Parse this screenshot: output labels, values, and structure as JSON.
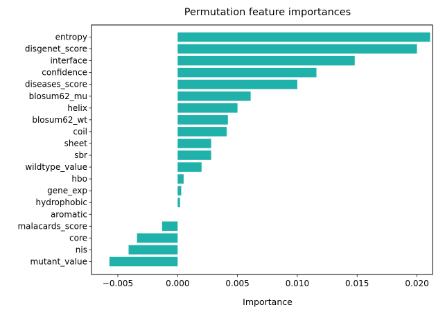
{
  "chart_data": {
    "type": "bar",
    "orientation": "horizontal",
    "title": "Permutation feature importances",
    "xlabel": "Importance",
    "ylabel": "",
    "bar_color": "#20b2aa",
    "categories": [
      "entropy",
      "disgenet_score",
      "interface",
      "confidence",
      "diseases_score",
      "blosum62_mu",
      "helix",
      "blosum62_wt",
      "coil",
      "sheet",
      "sbr",
      "wildtype_value",
      "hbo",
      "gene_exp",
      "hydrophobic",
      "aromatic",
      "malacards_score",
      "core",
      "nis",
      "mutant_value"
    ],
    "values": [
      0.0211,
      0.02,
      0.0148,
      0.0116,
      0.01,
      0.0061,
      0.005,
      0.0042,
      0.0041,
      0.0028,
      0.0028,
      0.002,
      0.0005,
      0.0003,
      0.0002,
      0.0,
      -0.0013,
      -0.0034,
      -0.0041,
      -0.0057
    ],
    "xlim": [
      -0.0072,
      0.0213
    ],
    "xticks": [
      -0.005,
      0.0,
      0.005,
      0.01,
      0.015,
      0.02
    ],
    "xtick_labels": [
      "−0.005",
      "0.000",
      "0.005",
      "0.010",
      "0.015",
      "0.020"
    ],
    "grid": false,
    "legend": "none"
  }
}
